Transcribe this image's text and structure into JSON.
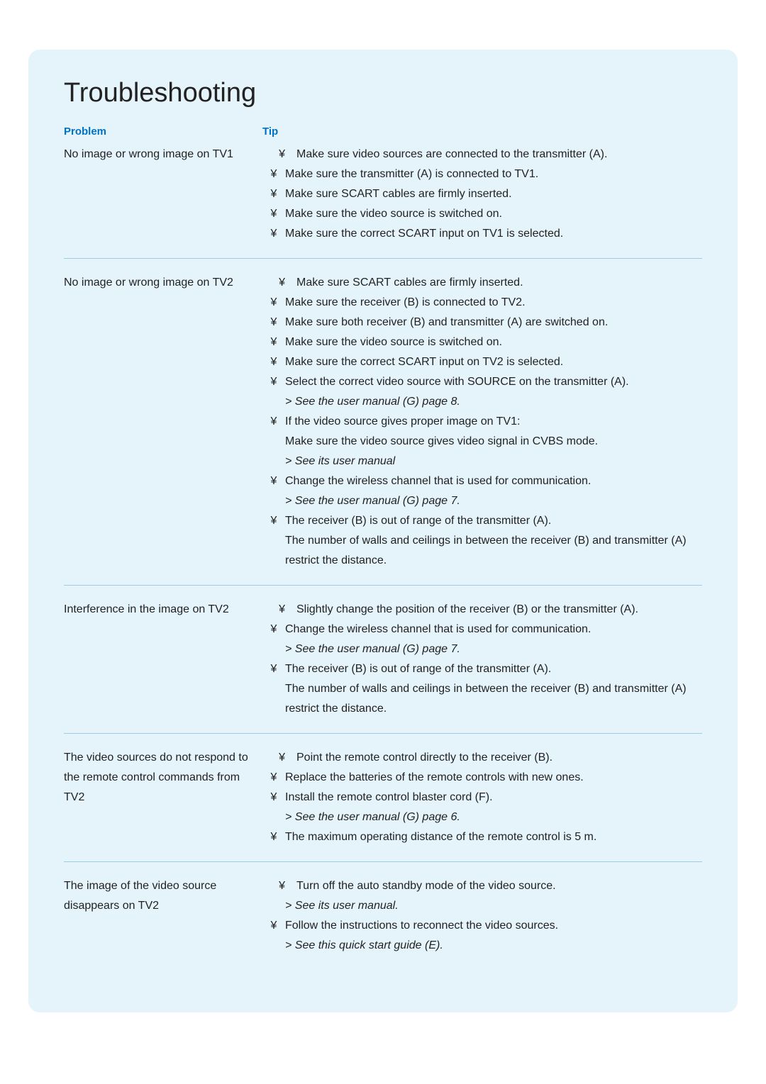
{
  "title": "Troubleshooting",
  "headers": {
    "problem": "Problem",
    "tip": "Tip"
  },
  "bullet_char": "¥",
  "sections": [
    {
      "problem": "No image or wrong image on TV1",
      "tips": [
        {
          "bullet": true,
          "indent": true,
          "text": "Make sure video sources are connected to the transmitter (A)."
        },
        {
          "bullet": true,
          "indent": false,
          "text": "Make sure the transmitter (A) is connected to TV1."
        },
        {
          "bullet": true,
          "indent": false,
          "text": "Make sure SCART cables are ﬁrmly inserted."
        },
        {
          "bullet": true,
          "indent": false,
          "text": "Make sure the video source is switched on."
        },
        {
          "bullet": true,
          "indent": false,
          "text": "Make sure the correct SCART input on TV1 is selected."
        }
      ]
    },
    {
      "problem": "No image or wrong image on TV2",
      "tips": [
        {
          "bullet": true,
          "indent": true,
          "text": "Make sure SCART cables are ﬁrmly inserted."
        },
        {
          "bullet": true,
          "indent": false,
          "text": "Make sure the receiver (B) is connected to TV2."
        },
        {
          "bullet": true,
          "indent": false,
          "text": "Make sure both receiver (B) and transmitter (A) are switched on."
        },
        {
          "bullet": true,
          "indent": false,
          "text": "Make sure the video source is switched on."
        },
        {
          "bullet": true,
          "indent": false,
          "text": "Make sure the correct SCART input on TV2 is selected."
        },
        {
          "bullet": true,
          "indent": false,
          "text": "Select the correct video source with SOURCE on the transmitter (A)."
        },
        {
          "bullet": false,
          "indent": false,
          "italic": true,
          "text": "> See the user manual (G) page 8."
        },
        {
          "bullet": true,
          "indent": false,
          "text": "If the video source gives proper image on TV1:"
        },
        {
          "bullet": false,
          "indent": false,
          "text": "Make sure the video source gives video signal in CVBS mode."
        },
        {
          "bullet": false,
          "indent": false,
          "italic": true,
          "text": "> See its user manual"
        },
        {
          "bullet": true,
          "indent": false,
          "text": "Change the wireless channel that is used for communication."
        },
        {
          "bullet": false,
          "indent": false,
          "italic": true,
          "text": "> See the user manual (G) page 7."
        },
        {
          "bullet": true,
          "indent": false,
          "text": "The receiver (B) is out of range of the transmitter (A)."
        },
        {
          "bullet": false,
          "indent": false,
          "text": "The number of walls and ceilings in between the receiver (B) and transmitter (A) restrict the distance."
        }
      ]
    },
    {
      "problem": "Interference in the image on TV2",
      "tips": [
        {
          "bullet": true,
          "indent": true,
          "text": "Slightly change the position of the receiver (B) or the transmitter (A)."
        },
        {
          "bullet": true,
          "indent": false,
          "text": "Change the wireless channel that is used for communication."
        },
        {
          "bullet": false,
          "indent": false,
          "italic": true,
          "text": "> See the user manual (G) page 7."
        },
        {
          "bullet": true,
          "indent": false,
          "text": "The receiver (B) is out of range of the transmitter (A)."
        },
        {
          "bullet": false,
          "indent": false,
          "text": "The number of walls and ceilings in between the receiver (B) and transmitter (A) restrict the distance."
        }
      ]
    },
    {
      "problem": "The video sources do not respond to the remote control commands from TV2",
      "tips": [
        {
          "bullet": true,
          "indent": true,
          "text": "Point the remote control directly to the receiver (B)."
        },
        {
          "bullet": true,
          "indent": false,
          "text": "Replace the batteries of the remote controls with new ones."
        },
        {
          "bullet": true,
          "indent": false,
          "text": "Install the remote control blaster cord (F)."
        },
        {
          "bullet": false,
          "indent": false,
          "italic": true,
          "text": "> See the user manual (G) page 6."
        },
        {
          "bullet": true,
          "indent": false,
          "text": "The maximum operating distance of the remote control is 5 m."
        }
      ]
    },
    {
      "problem": "The image of the video source disappears on TV2",
      "tips": [
        {
          "bullet": true,
          "indent": true,
          "text": "Turn off the auto standby mode of the video source."
        },
        {
          "bullet": false,
          "indent": false,
          "italic": true,
          "text": "> See its user manual."
        },
        {
          "bullet": true,
          "indent": false,
          "text": "Follow the instructions to reconnect the video sources."
        },
        {
          "bullet": false,
          "indent": false,
          "italic": true,
          "text": "> See this quick start guide (E)."
        }
      ]
    }
  ]
}
